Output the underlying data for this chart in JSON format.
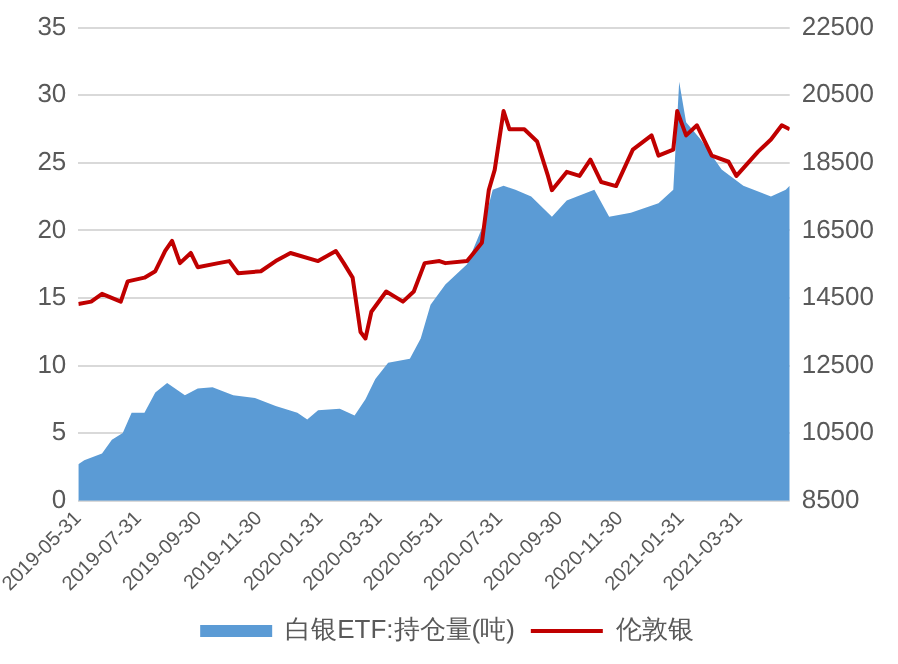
{
  "chart_data": {
    "type": "area",
    "legend": "bottom",
    "grid": "y",
    "marker": "none",
    "xlim": [
      "2019-05-31",
      "2021-05-21"
    ],
    "xticks": [
      "2019-05-31",
      "2019-07-31",
      "2019-09-30",
      "2019-11-30",
      "2020-01-31",
      "2020-03-31",
      "2020-05-31",
      "2020-07-31",
      "2020-09-30",
      "2020-11-30",
      "2021-01-31",
      "2021-03-31"
    ],
    "ylim": [
      0,
      35
    ],
    "yticks": [
      0,
      5,
      10,
      15,
      20,
      25,
      30,
      35
    ],
    "y2lim": [
      8500,
      22500
    ],
    "y2ticks": [
      8500,
      10500,
      12500,
      14500,
      16500,
      18500,
      20500,
      22500
    ],
    "series": [
      {
        "name": "白银ETF:持仓量(吨)",
        "color": "#5b9bd5",
        "x": [
          "2019-05-31",
          "2019-06-06",
          "2019-06-24",
          "2019-07-04",
          "2019-07-15",
          "2019-07-24",
          "2019-08-06",
          "2019-08-17",
          "2019-08-29",
          "2019-09-16",
          "2019-09-29",
          "2019-10-14",
          "2019-11-04",
          "2019-11-26",
          "2019-12-17",
          "2020-01-08",
          "2020-01-18",
          "2020-01-29",
          "2020-02-20",
          "2020-03-06",
          "2020-03-17",
          "2020-03-27",
          "2020-04-09",
          "2020-05-01",
          "2020-05-12",
          "2020-05-22",
          "2020-06-06",
          "2020-06-28",
          "2020-07-15",
          "2020-07-24",
          "2020-08-04",
          "2020-08-16",
          "2020-09-01",
          "2020-09-22",
          "2020-10-07",
          "2020-11-04",
          "2020-11-19",
          "2020-12-11",
          "2021-01-08",
          "2021-01-23",
          "2021-01-29",
          "2021-02-05",
          "2021-02-20",
          "2021-03-13",
          "2021-04-04",
          "2021-05-02",
          "2021-05-17",
          "2021-05-21"
        ],
        "values": [
          2.7,
          3.0,
          3.5,
          4.5,
          5.0,
          6.5,
          6.5,
          8.0,
          8.7,
          7.8,
          8.3,
          8.4,
          7.8,
          7.6,
          7.0,
          6.5,
          6.0,
          6.7,
          6.8,
          6.3,
          7.5,
          9.0,
          10.2,
          10.5,
          12.0,
          14.5,
          16.0,
          17.5,
          20.5,
          23,
          23.3,
          23,
          22.5,
          21,
          22.2,
          23,
          21,
          21.3,
          22,
          23,
          31,
          28,
          26.7,
          24.5,
          23.3,
          22.5,
          23,
          23.3
        ]
      },
      {
        "name": "伦敦银",
        "type": "line",
        "axis": "y2",
        "color": "#c00000",
        "x": [
          "2019-05-31",
          "2019-06-13",
          "2019-06-24",
          "2019-07-13",
          "2019-07-20",
          "2019-08-06",
          "2019-08-17",
          "2019-08-27",
          "2019-09-03",
          "2019-09-11",
          "2019-09-22",
          "2019-09-29",
          "2019-10-20",
          "2019-10-31",
          "2019-11-09",
          "2019-12-02",
          "2019-12-17",
          "2020-01-01",
          "2020-01-29",
          "2020-02-16",
          "2020-02-24",
          "2020-03-04",
          "2020-03-12",
          "2020-03-17",
          "2020-03-23",
          "2020-04-07",
          "2020-04-24",
          "2020-05-05",
          "2020-05-16",
          "2020-05-31",
          "2020-06-06",
          "2020-06-28",
          "2020-07-13",
          "2020-07-20",
          "2020-07-26",
          "2020-08-04",
          "2020-08-10",
          "2020-08-25",
          "2020-09-07",
          "2020-09-18",
          "2020-09-22",
          "2020-10-07",
          "2020-10-20",
          "2020-10-31",
          "2020-11-11",
          "2020-11-26",
          "2020-12-13",
          "2021-01-01",
          "2021-01-08",
          "2021-01-23",
          "2021-01-27",
          "2021-02-05",
          "2021-02-16",
          "2021-03-03",
          "2021-03-20",
          "2021-03-28",
          "2021-04-19",
          "2021-05-02",
          "2021-05-13",
          "2021-05-21"
        ],
        "values": [
          14320,
          14390,
          14620,
          14390,
          14990,
          15100,
          15290,
          15890,
          16190,
          15530,
          15830,
          15410,
          15530,
          15590,
          15230,
          15290,
          15590,
          15830,
          15590,
          15890,
          15530,
          15100,
          13490,
          13300,
          14090,
          14690,
          14390,
          14690,
          15530,
          15590,
          15530,
          15590,
          16130,
          17690,
          18290,
          20030,
          19490,
          19490,
          19130,
          18110,
          17690,
          18230,
          18110,
          18590,
          17930,
          17810,
          18890,
          19310,
          18710,
          18890,
          20030,
          19310,
          19610,
          18710,
          18530,
          18110,
          18830,
          19190,
          19610,
          19490
        ]
      }
    ]
  }
}
